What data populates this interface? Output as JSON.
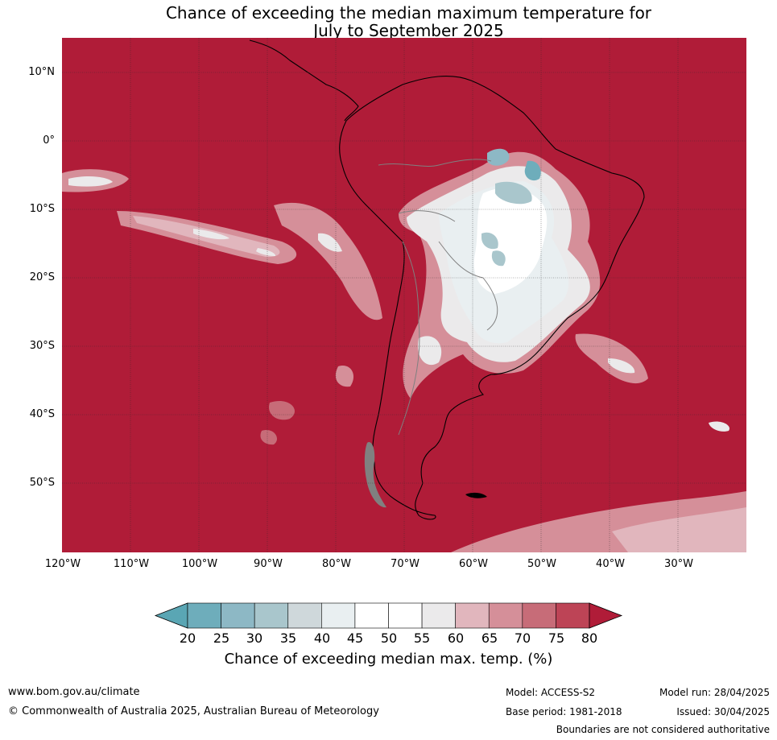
{
  "title_line1": "Chance of exceeding the median maximum temperature for",
  "title_line2": "July to September 2025",
  "map": {
    "lat_labels": [
      "10°N",
      "0°",
      "10°S",
      "20°S",
      "30°S",
      "40°S",
      "50°S"
    ],
    "lon_labels": [
      "120°W",
      "110°W",
      "100°W",
      "90°W",
      "80°W",
      "70°W",
      "60°W",
      "50°W",
      "40°W",
      "30°W"
    ],
    "background_color": "#b01c38"
  },
  "colorbar": {
    "ticks": [
      "20",
      "25",
      "30",
      "35",
      "40",
      "45",
      "50",
      "55",
      "60",
      "65",
      "70",
      "75",
      "80"
    ],
    "colors": [
      "#5aa6b4",
      "#6eadbb",
      "#8db8c5",
      "#a9c6cc",
      "#cfd8db",
      "#e9eff1",
      "#ffffff",
      "#ffffff",
      "#ebeaeb",
      "#e1b6bd",
      "#d58f99",
      "#c76c78",
      "#bd4456",
      "#b01c38"
    ],
    "label": "Chance of exceeding median max. temp. (%)"
  },
  "footer": {
    "website": "www.bom.gov.au/climate",
    "copyright": "© Commonwealth of Australia 2025, Australian Bureau of Meteorology",
    "model": "Model: ACCESS-S2",
    "base_period": "Base period: 1981-2018",
    "model_run": "Model run: 28/04/2025",
    "issued": "Issued: 30/04/2025",
    "disclaimer": "Boundaries are not considered authoritative"
  }
}
